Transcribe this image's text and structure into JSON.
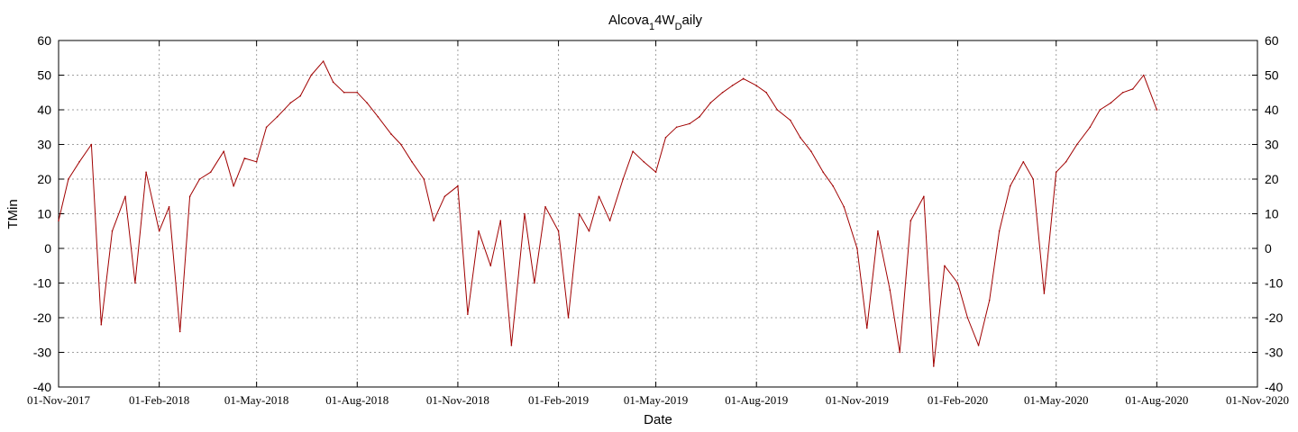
{
  "chart_data": {
    "type": "line",
    "title": "Alcova",
    "title_sub1": "1",
    "title_mid": "4W",
    "title_sub2": "D",
    "title_end": "aily",
    "xlabel": "Date",
    "ylabel": "TMin",
    "ylim": [
      -40,
      60
    ],
    "xlim": [
      "2017-11-01",
      "2020-11-01"
    ],
    "y_ticks": [
      "-40",
      "-30",
      "-20",
      "-10",
      "0",
      "10",
      "20",
      "30",
      "40",
      "50",
      "60"
    ],
    "x_ticks": [
      "01-Nov-2017",
      "01-Feb-2018",
      "01-May-2018",
      "01-Aug-2018",
      "01-Nov-2018",
      "01-Feb-2019",
      "01-May-2019",
      "01-Aug-2019",
      "01-Nov-2019",
      "01-Feb-2020",
      "01-May-2020",
      "01-Aug-2020",
      "01-Nov-2020"
    ],
    "x_tick_dates": [
      "2017-11-01",
      "2018-02-01",
      "2018-05-01",
      "2018-08-01",
      "2018-11-01",
      "2019-02-01",
      "2019-05-01",
      "2019-08-01",
      "2019-11-01",
      "2020-02-01",
      "2020-05-01",
      "2020-08-01",
      "2020-11-01"
    ],
    "grid": true,
    "line_color": "#a00000",
    "series": [
      {
        "x": [
          "2017-11-01",
          "2017-11-10",
          "2017-11-20",
          "2017-12-01",
          "2017-12-10",
          "2017-12-20",
          "2018-01-01",
          "2018-01-10",
          "2018-01-20",
          "2018-02-01",
          "2018-02-10",
          "2018-02-20",
          "2018-03-01",
          "2018-03-10",
          "2018-03-20",
          "2018-04-01",
          "2018-04-10",
          "2018-04-20",
          "2018-05-01",
          "2018-05-10",
          "2018-05-20",
          "2018-06-01",
          "2018-06-10",
          "2018-06-20",
          "2018-07-01",
          "2018-07-10",
          "2018-07-20",
          "2018-08-01",
          "2018-08-10",
          "2018-08-20",
          "2018-09-01",
          "2018-09-10",
          "2018-09-20",
          "2018-10-01",
          "2018-10-10",
          "2018-10-20",
          "2018-11-01",
          "2018-11-10",
          "2018-11-20",
          "2018-12-01",
          "2018-12-10",
          "2018-12-20",
          "2019-01-01",
          "2019-01-10",
          "2019-01-20",
          "2019-02-01",
          "2019-02-10",
          "2019-02-20",
          "2019-03-01",
          "2019-03-10",
          "2019-03-20",
          "2019-04-01",
          "2019-04-10",
          "2019-04-20",
          "2019-05-01",
          "2019-05-10",
          "2019-05-20",
          "2019-06-01",
          "2019-06-10",
          "2019-06-20",
          "2019-07-01",
          "2019-07-10",
          "2019-07-20",
          "2019-08-01",
          "2019-08-10",
          "2019-08-20",
          "2019-09-01",
          "2019-09-10",
          "2019-09-20",
          "2019-10-01",
          "2019-10-10",
          "2019-10-20",
          "2019-11-01",
          "2019-11-10",
          "2019-11-20",
          "2019-12-01",
          "2019-12-10",
          "2019-12-20",
          "2020-01-01",
          "2020-01-10",
          "2020-01-20",
          "2020-02-01",
          "2020-02-10",
          "2020-02-20",
          "2020-03-01",
          "2020-03-10",
          "2020-03-20",
          "2020-04-01",
          "2020-04-10",
          "2020-04-20",
          "2020-05-01",
          "2020-05-10",
          "2020-05-20",
          "2020-06-01",
          "2020-06-10",
          "2020-06-20",
          "2020-07-01",
          "2020-07-10",
          "2020-07-20",
          "2020-08-01"
        ],
        "values": [
          8,
          20,
          25,
          30,
          -22,
          5,
          15,
          -10,
          22,
          5,
          12,
          -24,
          15,
          20,
          22,
          28,
          18,
          26,
          25,
          35,
          38,
          42,
          44,
          50,
          54,
          48,
          45,
          45,
          42,
          38,
          33,
          30,
          25,
          20,
          8,
          15,
          18,
          -19,
          5,
          -5,
          8,
          -28,
          10,
          -10,
          12,
          5,
          -20,
          10,
          5,
          15,
          8,
          20,
          28,
          25,
          22,
          32,
          35,
          36,
          38,
          42,
          45,
          47,
          49,
          47,
          45,
          40,
          37,
          32,
          28,
          22,
          18,
          12,
          0,
          -23,
          5,
          -12,
          -30,
          8,
          15,
          -34,
          -5,
          -10,
          -20,
          -28,
          -15,
          5,
          18,
          25,
          20,
          -13,
          22,
          25,
          30,
          35,
          40,
          42,
          45,
          46,
          50,
          40
        ]
      }
    ]
  }
}
